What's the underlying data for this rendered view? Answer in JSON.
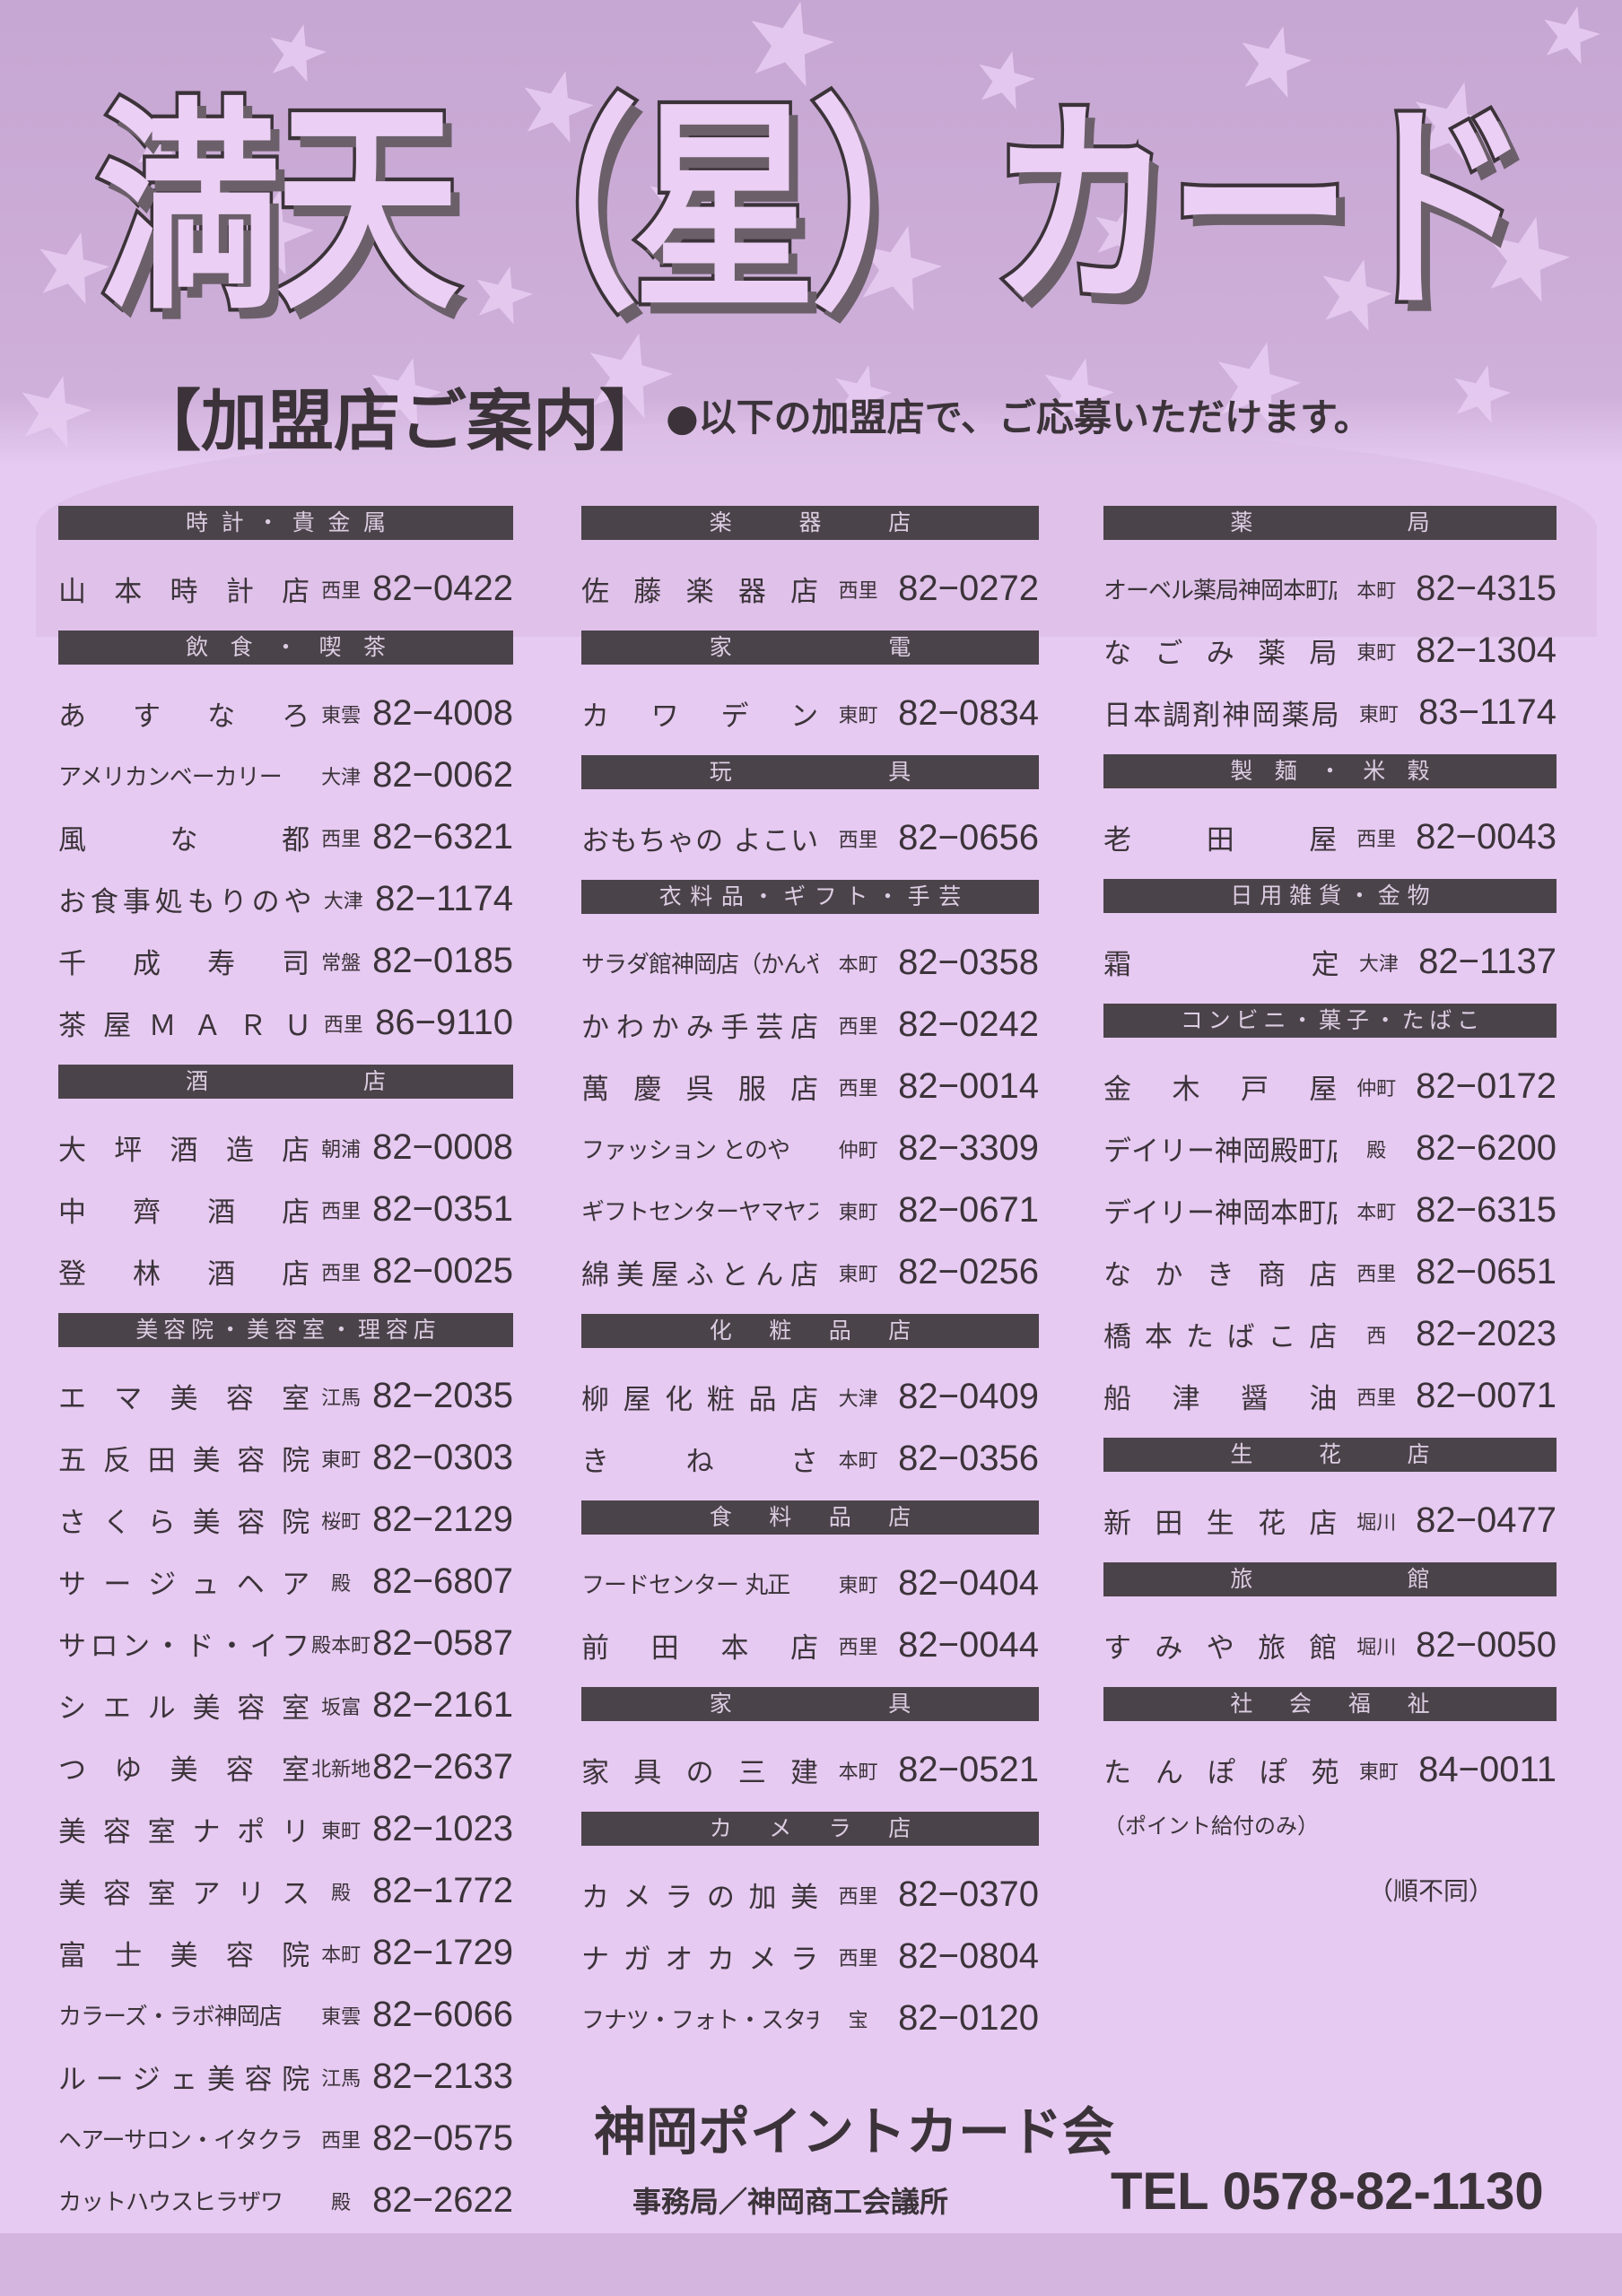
{
  "header": {
    "title": "満天（星）カード",
    "guide_title": "【加盟店ご案内】",
    "guide_note": "●以下の加盟店で、ご応募いただけます。"
  },
  "columns": [
    [
      {
        "category": "時計・貴金属",
        "entries": [
          {
            "name": "山本時計店",
            "area": "西里",
            "tel": "82−0422"
          }
        ]
      },
      {
        "category": "飲食・喫茶",
        "entries": [
          {
            "name": "あすなろ",
            "area": "東雲",
            "tel": "82−4008"
          },
          {
            "name": "アメリカンベーカリー",
            "area": "大津",
            "tel": "82−0062"
          },
          {
            "name": "風な都",
            "area": "西里",
            "tel": "82−6321"
          },
          {
            "name": "お食事処もりのや",
            "area": "大津",
            "tel": "82−1174"
          },
          {
            "name": "千成寿司",
            "area": "常盤",
            "tel": "82−0185"
          },
          {
            "name": "茶屋ＭＡＲＵ",
            "area": "西里",
            "tel": "86−9110"
          }
        ]
      },
      {
        "category": "酒店",
        "entries": [
          {
            "name": "大坪酒造店",
            "area": "朝浦",
            "tel": "82−0008"
          },
          {
            "name": "中齊酒店",
            "area": "西里",
            "tel": "82−0351"
          },
          {
            "name": "登林酒店",
            "area": "西里",
            "tel": "82−0025"
          }
        ]
      },
      {
        "category": "美容院・美容室・理容店",
        "entries": [
          {
            "name": "エマ美容室",
            "area": "江馬",
            "tel": "82−2035"
          },
          {
            "name": "五反田美容院",
            "area": "東町",
            "tel": "82−0303"
          },
          {
            "name": "さくら美容院",
            "area": "桜町",
            "tel": "82−2129"
          },
          {
            "name": "サージュヘア",
            "area": "殿",
            "tel": "82−6807"
          },
          {
            "name": "サロン・ド・イフ",
            "area": "殿本町",
            "tel": "82−0587"
          },
          {
            "name": "シエル美容室",
            "area": "坂富",
            "tel": "82−2161"
          },
          {
            "name": "つゆ美容室",
            "area": "北新地",
            "tel": "82−2637"
          },
          {
            "name": "美容室ナポリ",
            "area": "東町",
            "tel": "82−1023"
          },
          {
            "name": "美容室アリス",
            "area": "殿",
            "tel": "82−1772"
          },
          {
            "name": "富士美容院",
            "area": "本町",
            "tel": "82−1729"
          },
          {
            "name": "カラーズ・ラボ神岡店",
            "area": "東雲",
            "tel": "82−6066"
          },
          {
            "name": "ルージェ美容院",
            "area": "江馬",
            "tel": "82−2133"
          },
          {
            "name": "ヘアーサロン・イタクラ",
            "area": "西里",
            "tel": "82−0575"
          },
          {
            "name": "カットハウスヒラザワ",
            "area": "殿",
            "tel": "82−2622"
          }
        ]
      }
    ],
    [
      {
        "category": "楽器店",
        "entries": [
          {
            "name": "佐藤楽器店",
            "area": "西里",
            "tel": "82−0272"
          }
        ]
      },
      {
        "category": "家電",
        "entries": [
          {
            "name": "カワデン",
            "area": "東町",
            "tel": "82−0834"
          }
        ]
      },
      {
        "category": "玩具",
        "entries": [
          {
            "name": "おもちゃの よこい",
            "area": "西里",
            "tel": "82−0656"
          }
        ]
      },
      {
        "category": "衣料品・ギフト・手芸",
        "entries": [
          {
            "name": "サラダ館神岡店（かんや）",
            "area": "本町",
            "tel": "82−0358"
          },
          {
            "name": "かわかみ手芸店",
            "area": "西里",
            "tel": "82−0242"
          },
          {
            "name": "萬慶呉服店",
            "area": "西里",
            "tel": "82−0014"
          },
          {
            "name": "ファッション とのや",
            "area": "仲町",
            "tel": "82−3309"
          },
          {
            "name": "ギフトセンターヤマヤス",
            "area": "東町",
            "tel": "82−0671"
          },
          {
            "name": "綿美屋ふとん店",
            "area": "東町",
            "tel": "82−0256"
          }
        ]
      },
      {
        "category": "化粧品店",
        "entries": [
          {
            "name": "柳屋化粧品店",
            "area": "大津",
            "tel": "82−0409"
          },
          {
            "name": "きねさ",
            "area": "本町",
            "tel": "82−0356"
          }
        ]
      },
      {
        "category": "食料品店",
        "entries": [
          {
            "name": "フードセンター 丸正",
            "area": "東町",
            "tel": "82−0404"
          },
          {
            "name": "前田本店",
            "area": "西里",
            "tel": "82−0044"
          }
        ]
      },
      {
        "category": "家具",
        "entries": [
          {
            "name": "家具の三建",
            "area": "本町",
            "tel": "82−0521"
          }
        ]
      },
      {
        "category": "カメラ店",
        "entries": [
          {
            "name": "カメラの加美",
            "area": "西里",
            "tel": "82−0370"
          },
          {
            "name": "ナガオカメラ",
            "area": "西里",
            "tel": "82−0804"
          },
          {
            "name": "フナツ・フォト・スタヂオ",
            "area": "宝",
            "tel": "82−0120"
          }
        ]
      }
    ],
    [
      {
        "category": "薬局",
        "entries": [
          {
            "name": "オーベル薬局神岡本町店",
            "area": "本町",
            "tel": "82−4315"
          },
          {
            "name": "なごみ薬局",
            "area": "東町",
            "tel": "82−1304"
          },
          {
            "name": "日本調剤神岡薬局",
            "area": "東町",
            "tel": "83−1174"
          }
        ]
      },
      {
        "category": "製麺・米穀",
        "entries": [
          {
            "name": "老田屋",
            "area": "西里",
            "tel": "82−0043"
          }
        ]
      },
      {
        "category": "日用雑貨・金物",
        "entries": [
          {
            "name": "霜定",
            "area": "大津",
            "tel": "82−1137"
          }
        ]
      },
      {
        "category": "コンビニ・菓子・たばこ",
        "entries": [
          {
            "name": "金木戸屋",
            "area": "仲町",
            "tel": "82−0172"
          },
          {
            "name": "デイリー神岡殿町店",
            "area": "殿",
            "tel": "82−6200"
          },
          {
            "name": "デイリー神岡本町店",
            "area": "本町",
            "tel": "82−6315"
          },
          {
            "name": "なかき商店",
            "area": "西里",
            "tel": "82−0651"
          },
          {
            "name": "橋本たばこ店",
            "area": "西",
            "tel": "82−2023"
          },
          {
            "name": "船津醤油",
            "area": "西里",
            "tel": "82−0071"
          }
        ]
      },
      {
        "category": "生花店",
        "entries": [
          {
            "name": "新田生花店",
            "area": "堀川",
            "tel": "82−0477"
          }
        ]
      },
      {
        "category": "旅館",
        "entries": [
          {
            "name": "すみや旅館",
            "area": "堀川",
            "tel": "82−0050"
          }
        ]
      },
      {
        "category": "社会福祉",
        "entries": [
          {
            "name": "たんぽぽ苑",
            "area": "東町",
            "tel": "84−0011"
          }
        ]
      }
    ]
  ],
  "welfare_note": "（ポイント給付のみ）",
  "order_note": "（順不同）",
  "footer": {
    "organization": "神岡ポイントカード会",
    "office": "事務局／神岡商工会議所",
    "tel": "TEL 0578-82-1130"
  },
  "colors": {
    "background": "#e6caf1",
    "top_band": "#c6a6d2",
    "category_bar": "#4b434a",
    "text": "#3b3339"
  }
}
